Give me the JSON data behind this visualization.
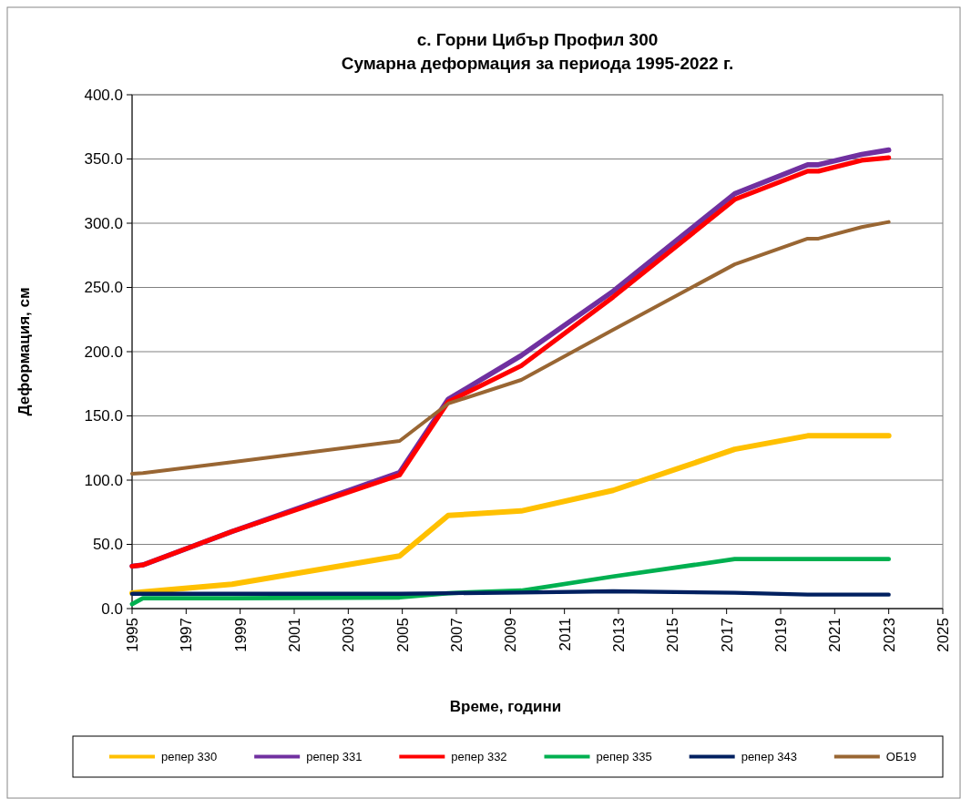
{
  "chart_data": {
    "type": "line",
    "title": "с. Горни Цибър Профил 300",
    "subtitle": "Сумарна деформация за периода 1995-2022 г.",
    "xlabel": "Време, години",
    "ylabel": "Деформация, см",
    "x": [
      1995,
      1995.4,
      1998.7,
      2004.9,
      2006.7,
      2009.4,
      2012.8,
      2017.3,
      2020,
      2020.4,
      2022,
      2023
    ],
    "series": [
      {
        "name": "репер 330",
        "color": "#ffc000",
        "values": [
          12,
          13,
          19,
          41,
          72.5,
          76,
          92,
          124,
          134.5,
          134.5,
          134.5,
          134.5
        ]
      },
      {
        "name": "репер 331",
        "color": "#7030a0",
        "values": [
          33,
          34,
          60,
          106,
          163,
          197,
          247,
          323,
          345.5,
          345.5,
          353.5,
          357
        ]
      },
      {
        "name": "репер 332",
        "color": "#ff0000",
        "values": [
          33,
          34,
          60,
          104,
          161,
          189,
          242.5,
          318.5,
          340.5,
          340.5,
          349,
          351
        ]
      },
      {
        "name": "репер 335",
        "color": "#00b050",
        "values": [
          3.5,
          8,
          8,
          8.7,
          12,
          14,
          25,
          38.5,
          38.5,
          38.5,
          38.5,
          38.5
        ]
      },
      {
        "name": "репер 343",
        "color": "#002060",
        "values": [
          11.5,
          11.5,
          11.5,
          11.5,
          12,
          12.5,
          13.5,
          12.3,
          10.9,
          10.9,
          10.9,
          10.9
        ]
      },
      {
        "name": "ОБ19",
        "color": "#996633",
        "values": [
          105,
          105.5,
          114,
          130.5,
          159.6,
          178,
          217,
          268,
          288,
          288,
          297,
          301
        ]
      }
    ],
    "xlim": [
      1995,
      2025
    ],
    "xticks": [
      1995,
      1997,
      1999,
      2001,
      2003,
      2005,
      2007,
      2009,
      2011,
      2013,
      2015,
      2017,
      2019,
      2021,
      2023,
      2025
    ],
    "ylim": [
      0,
      400
    ],
    "yticks": [
      {
        "value": 0,
        "label": "0.0"
      },
      {
        "value": 50,
        "label": "50.0"
      },
      {
        "value": 100,
        "label": "100.0"
      },
      {
        "value": 150,
        "label": "150.0"
      },
      {
        "value": 200,
        "label": "200.0"
      },
      {
        "value": 250,
        "label": "250.0"
      },
      {
        "value": 300,
        "label": "300.0"
      },
      {
        "value": 350,
        "label": "350.0"
      },
      {
        "value": 400,
        "label": "400.0"
      }
    ],
    "grid": "y",
    "legend": "bottom",
    "marker": "none",
    "line_style": "solid"
  }
}
